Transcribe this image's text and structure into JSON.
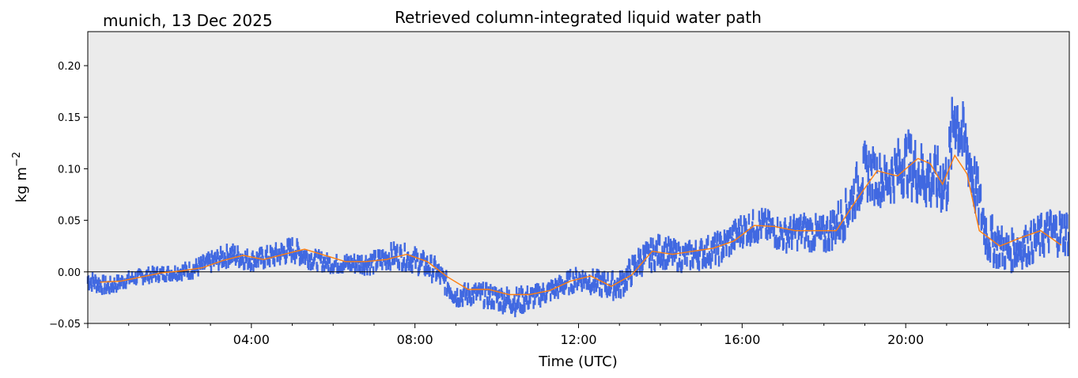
{
  "header": {
    "location_date": "munich, 13 Dec 2025",
    "title": "Retrieved column-integrated liquid water path"
  },
  "colors": {
    "plot_background": "#ebebeb",
    "scatter": "#4169e1",
    "smoothed_line": "#ff7f0e",
    "zero_line": "#000000"
  },
  "chart_data": {
    "type": "scatter",
    "title": "Retrieved column-integrated liquid water path",
    "xlabel": "Time (UTC)",
    "ylabel": "kg m",
    "ylabel_superscript": "−2",
    "xlim": [
      0,
      24
    ],
    "ylim": [
      -0.05,
      0.233
    ],
    "x_unit": "hours UTC",
    "y_ticks": [
      -0.05,
      0.0,
      0.05,
      0.1,
      0.15,
      0.2
    ],
    "y_tick_labels": [
      "−0.05",
      "0.00",
      "0.05",
      "0.10",
      "0.15",
      "0.20"
    ],
    "x_ticks": [
      4,
      8,
      12,
      16,
      20
    ],
    "x_tick_labels": [
      "04:00",
      "08:00",
      "12:00",
      "16:00",
      "20:00"
    ],
    "grid": false,
    "reference_line_y": 0.0,
    "series": [
      {
        "kind": "scatter",
        "x": [
          0.0,
          0.5,
          1.0,
          1.5,
          2.0,
          2.5,
          3.0,
          3.5,
          4.0,
          4.5,
          5.0,
          5.5,
          6.0,
          6.5,
          7.0,
          7.5,
          8.0,
          8.5,
          9.0,
          9.5,
          10.0,
          10.5,
          11.0,
          11.5,
          12.0,
          12.5,
          13.0,
          13.5,
          14.0,
          14.5,
          15.0,
          15.5,
          16.0,
          16.5,
          17.0,
          17.5,
          18.0,
          18.5,
          19.0,
          19.5,
          20.0,
          20.5,
          21.0,
          21.2,
          21.5,
          22.0,
          22.5,
          23.0,
          23.5,
          24.0
        ],
        "y": [
          -0.005,
          -0.012,
          -0.005,
          -0.001,
          0.001,
          0.004,
          0.012,
          0.02,
          0.014,
          0.018,
          0.025,
          0.015,
          0.01,
          0.011,
          0.012,
          0.02,
          0.015,
          0.005,
          -0.02,
          -0.018,
          -0.022,
          -0.025,
          -0.02,
          -0.012,
          -0.003,
          -0.008,
          -0.01,
          0.015,
          0.025,
          0.018,
          0.022,
          0.028,
          0.045,
          0.05,
          0.04,
          0.045,
          0.04,
          0.06,
          0.105,
          0.095,
          0.115,
          0.1,
          0.095,
          0.165,
          0.125,
          0.04,
          0.025,
          0.032,
          0.045,
          0.045
        ],
        "spread": [
          0.008,
          0.007,
          0.006,
          0.006,
          0.006,
          0.007,
          0.008,
          0.009,
          0.008,
          0.009,
          0.01,
          0.008,
          0.007,
          0.008,
          0.009,
          0.01,
          0.01,
          0.01,
          0.009,
          0.009,
          0.01,
          0.011,
          0.009,
          0.009,
          0.009,
          0.01,
          0.011,
          0.012,
          0.013,
          0.011,
          0.012,
          0.013,
          0.013,
          0.013,
          0.013,
          0.014,
          0.015,
          0.018,
          0.022,
          0.02,
          0.025,
          0.025,
          0.025,
          0.03,
          0.025,
          0.02,
          0.016,
          0.016,
          0.018,
          0.018
        ]
      },
      {
        "kind": "line",
        "x": [
          0.3,
          0.8,
          1.3,
          1.8,
          2.3,
          2.8,
          3.3,
          3.8,
          4.3,
          4.8,
          5.3,
          5.8,
          6.3,
          6.8,
          7.3,
          7.8,
          8.3,
          8.8,
          9.3,
          9.8,
          10.3,
          10.8,
          11.3,
          11.8,
          12.3,
          12.8,
          13.3,
          13.8,
          14.3,
          14.8,
          15.3,
          15.8,
          16.3,
          16.8,
          17.3,
          17.8,
          18.3,
          18.8,
          19.3,
          19.8,
          20.3,
          20.6,
          20.9,
          21.2,
          21.5,
          21.8,
          22.3,
          22.8,
          23.3,
          23.8
        ],
        "y": [
          -0.01,
          -0.009,
          -0.005,
          -0.001,
          0.001,
          0.004,
          0.011,
          0.016,
          0.012,
          0.017,
          0.022,
          0.016,
          0.01,
          0.01,
          0.012,
          0.017,
          0.01,
          -0.005,
          -0.017,
          -0.017,
          -0.022,
          -0.022,
          -0.018,
          -0.009,
          -0.004,
          -0.014,
          -0.003,
          0.02,
          0.017,
          0.02,
          0.023,
          0.03,
          0.045,
          0.044,
          0.04,
          0.04,
          0.04,
          0.07,
          0.098,
          0.093,
          0.11,
          0.105,
          0.085,
          0.113,
          0.095,
          0.04,
          0.025,
          0.033,
          0.04,
          0.026
        ]
      }
    ]
  }
}
